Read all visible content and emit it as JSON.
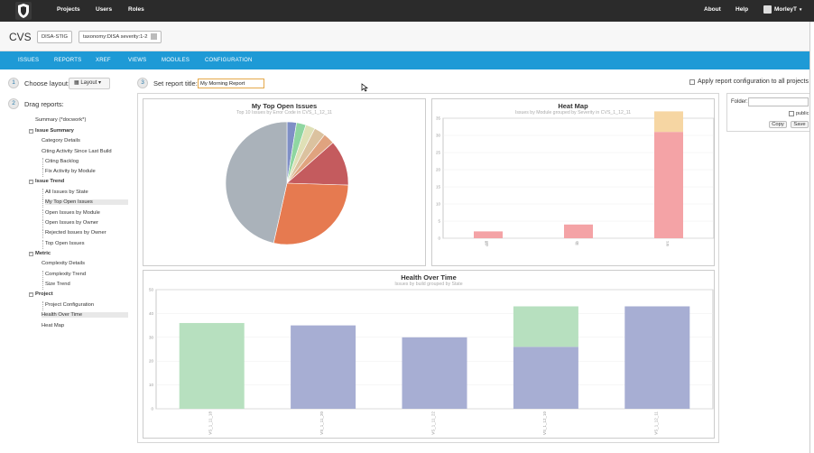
{
  "nav": {
    "projects": "Projects",
    "users": "Users",
    "roles": "Roles",
    "about": "About",
    "help": "Help",
    "user": "MorleyT"
  },
  "project": {
    "name": "CVS",
    "tag": "DISA-STIG",
    "taxonomy": "taxonomy:DISA severity:1-2"
  },
  "tabs": [
    "ISSUES",
    "REPORTS",
    "XREF",
    "VIEWS",
    "MODULES",
    "CONFIGURATION"
  ],
  "steps": {
    "n1": "1",
    "choose_layout": "Choose layout:",
    "layout_btn": "Layout",
    "n2": "2",
    "drag_reports": "Drag reports:",
    "n3": "3",
    "set_title": "Set report title:",
    "title_value": "My Morning Report",
    "apply_all": "Apply report configuration to all projects"
  },
  "tree": [
    {
      "label": "Summary (*docwork*)",
      "level": 0
    },
    {
      "label": "Issue Summary",
      "level": 1,
      "bold": true
    },
    {
      "label": "Category Details",
      "level": 2
    },
    {
      "label": "Citing Activity Since Last Build",
      "level": 2
    },
    {
      "label": "Citing Backlog",
      "level": 3
    },
    {
      "label": "Fix Activity by Module",
      "level": 3
    },
    {
      "label": "Issue Trend",
      "level": 1,
      "bold": true
    },
    {
      "label": "All Issues by State",
      "level": 3
    },
    {
      "label": "My Top Open Issues",
      "level": 3,
      "selected": true
    },
    {
      "label": "Open Issues by Module",
      "level": 3
    },
    {
      "label": "Open Issues by Owner",
      "level": 3
    },
    {
      "label": "Rejected Issues by Owner",
      "level": 3
    },
    {
      "label": "Top Open Issues",
      "level": 3
    },
    {
      "label": "Metric",
      "level": 1,
      "bold": true
    },
    {
      "label": "Complexity Details",
      "level": 2
    },
    {
      "label": "Complexity Trend",
      "level": 3
    },
    {
      "label": "Size Trend",
      "level": 3
    },
    {
      "label": "Project",
      "level": 1,
      "bold": true
    },
    {
      "label": "Project Configuration",
      "level": 3
    },
    {
      "label": "Health Over Time",
      "level": 2,
      "selected": true
    },
    {
      "label": "Heat Map",
      "level": 2
    }
  ],
  "folder": {
    "label": "Folder:",
    "public": "public",
    "copy": "Copy",
    "save": "Save"
  },
  "chart_data": [
    {
      "type": "pie",
      "title": "My Top Open Issues",
      "subtitle": "Top 10 Issues by Error Code in CVS_1_12_11",
      "values": [
        2.5,
        2.5,
        2.5,
        3,
        3,
        12,
        28,
        46.5
      ],
      "colors": [
        "#7f8fc6",
        "#8fd6a1",
        "#dfe0b6",
        "#dbc29f",
        "#e0a37f",
        "#c45b5e",
        "#e67a50",
        "#aab2ba"
      ]
    },
    {
      "type": "bar",
      "title": "Heat Map",
      "subtitle": "Issues by Module grouped by Severity in CVS_1_12_11",
      "categories": [
        "diff",
        "lib",
        "src"
      ],
      "series": [
        {
          "values": [
            2,
            4,
            31
          ],
          "color": "#f4a3a6"
        },
        {
          "values": [
            0,
            0,
            6
          ],
          "color": "#f6d6a3"
        }
      ],
      "ylim": [
        0,
        35
      ],
      "yticks": [
        0,
        5,
        10,
        15,
        20,
        25,
        30,
        35
      ]
    },
    {
      "type": "bar",
      "title": "Health Over Time",
      "subtitle": "Issues by build grouped by State",
      "categories": [
        "VS_1_11_18",
        "VS_1_11_20",
        "VS_1_11_22",
        "VS_1_12_10",
        "VS_1_12_11"
      ],
      "series": [
        {
          "values": [
            0,
            35,
            30,
            26,
            43
          ],
          "color": "#a7aed3"
        },
        {
          "values": [
            36,
            0,
            0,
            17,
            0
          ],
          "color": "#b7e0bf"
        }
      ],
      "ylim": [
        0,
        50
      ],
      "yticks": [
        0,
        10,
        20,
        30,
        40,
        50
      ]
    }
  ]
}
